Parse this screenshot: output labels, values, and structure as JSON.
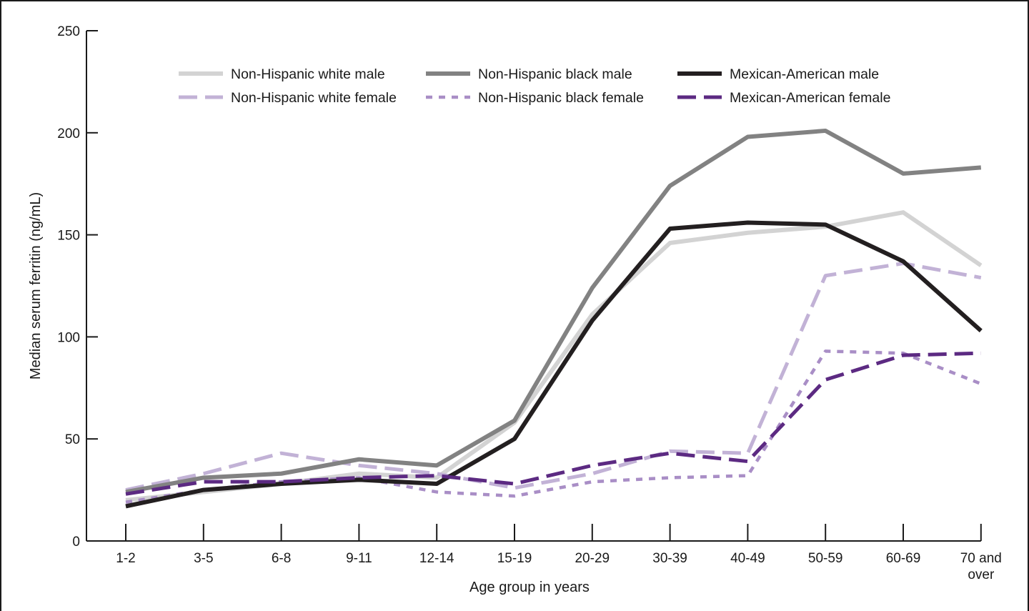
{
  "chart_data": {
    "type": "line",
    "title": "",
    "xlabel": "Age group in years",
    "ylabel": "Median serum ferritin (ng/mL)",
    "ylim": [
      0,
      250
    ],
    "yticks": [
      0,
      50,
      100,
      150,
      200,
      250
    ],
    "grid": false,
    "legend_position": "top",
    "categories": [
      "1-2",
      "3-5",
      "6-8",
      "9-11",
      "12-14",
      "15-19",
      "20-29",
      "30-39",
      "40-49",
      "50-59",
      "60-69",
      "70 and over"
    ],
    "series": [
      {
        "name": "Non-Hispanic white male",
        "color": "#d3d3d3",
        "style": "solid",
        "values": [
          20,
          24,
          28,
          33,
          31,
          58,
          111,
          146,
          151,
          154,
          161,
          135
        ]
      },
      {
        "name": "Non-Hispanic black male",
        "color": "#828282",
        "style": "solid",
        "values": [
          24,
          31,
          33,
          40,
          37,
          59,
          124,
          174,
          198,
          201,
          180,
          183
        ]
      },
      {
        "name": "Mexican-American male",
        "color": "#231f20",
        "style": "solid",
        "values": [
          17,
          25,
          28,
          30,
          28,
          50,
          108,
          153,
          156,
          155,
          137,
          103
        ]
      },
      {
        "name": "Non-Hispanic white female",
        "color": "#c2b2d6",
        "style": "dashed",
        "values": [
          25,
          33,
          43,
          37,
          33,
          26,
          33,
          44,
          43,
          130,
          136,
          129
        ]
      },
      {
        "name": "Non-Hispanic black female",
        "color": "#a98ec6",
        "style": "dotted",
        "values": [
          19,
          25,
          29,
          31,
          24,
          22,
          29,
          31,
          32,
          93,
          92,
          77
        ]
      },
      {
        "name": "Mexican-American female",
        "color": "#5c2a82",
        "style": "dashed",
        "values": [
          23,
          29,
          29,
          31,
          32,
          28,
          37,
          43,
          39,
          79,
          91,
          92
        ]
      }
    ]
  }
}
